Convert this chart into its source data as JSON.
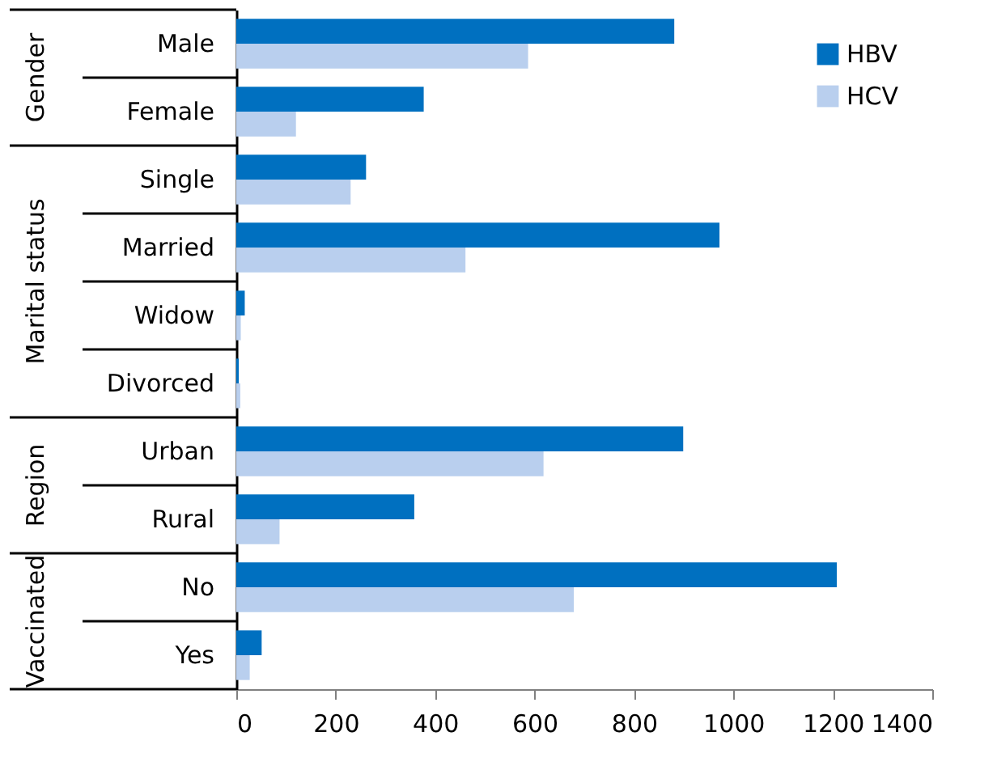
{
  "chart_data": {
    "type": "bar",
    "orientation": "horizontal",
    "categories": [
      "Male",
      "Female",
      "Single",
      "Married",
      "Widow",
      "Divorced",
      "Urban",
      "Rural",
      "No",
      "Yes"
    ],
    "series": [
      {
        "name": "HBV",
        "color": "#0070c0",
        "values": [
          881,
          377,
          261,
          972,
          17,
          5,
          899,
          358,
          1208,
          51
        ]
      },
      {
        "name": "HCV",
        "color": "#b9cfee",
        "values": [
          587,
          120,
          230,
          461,
          9,
          8,
          618,
          87,
          679,
          27
        ]
      }
    ],
    "annotations": [
      "Gender",
      "Marital status",
      "Region",
      "Vaccinated"
    ],
    "xlim": [
      0,
      1400
    ],
    "xticks": [
      0,
      200,
      400,
      600,
      800,
      1000,
      1200,
      1400
    ],
    "grid": false,
    "legend": "top right"
  }
}
